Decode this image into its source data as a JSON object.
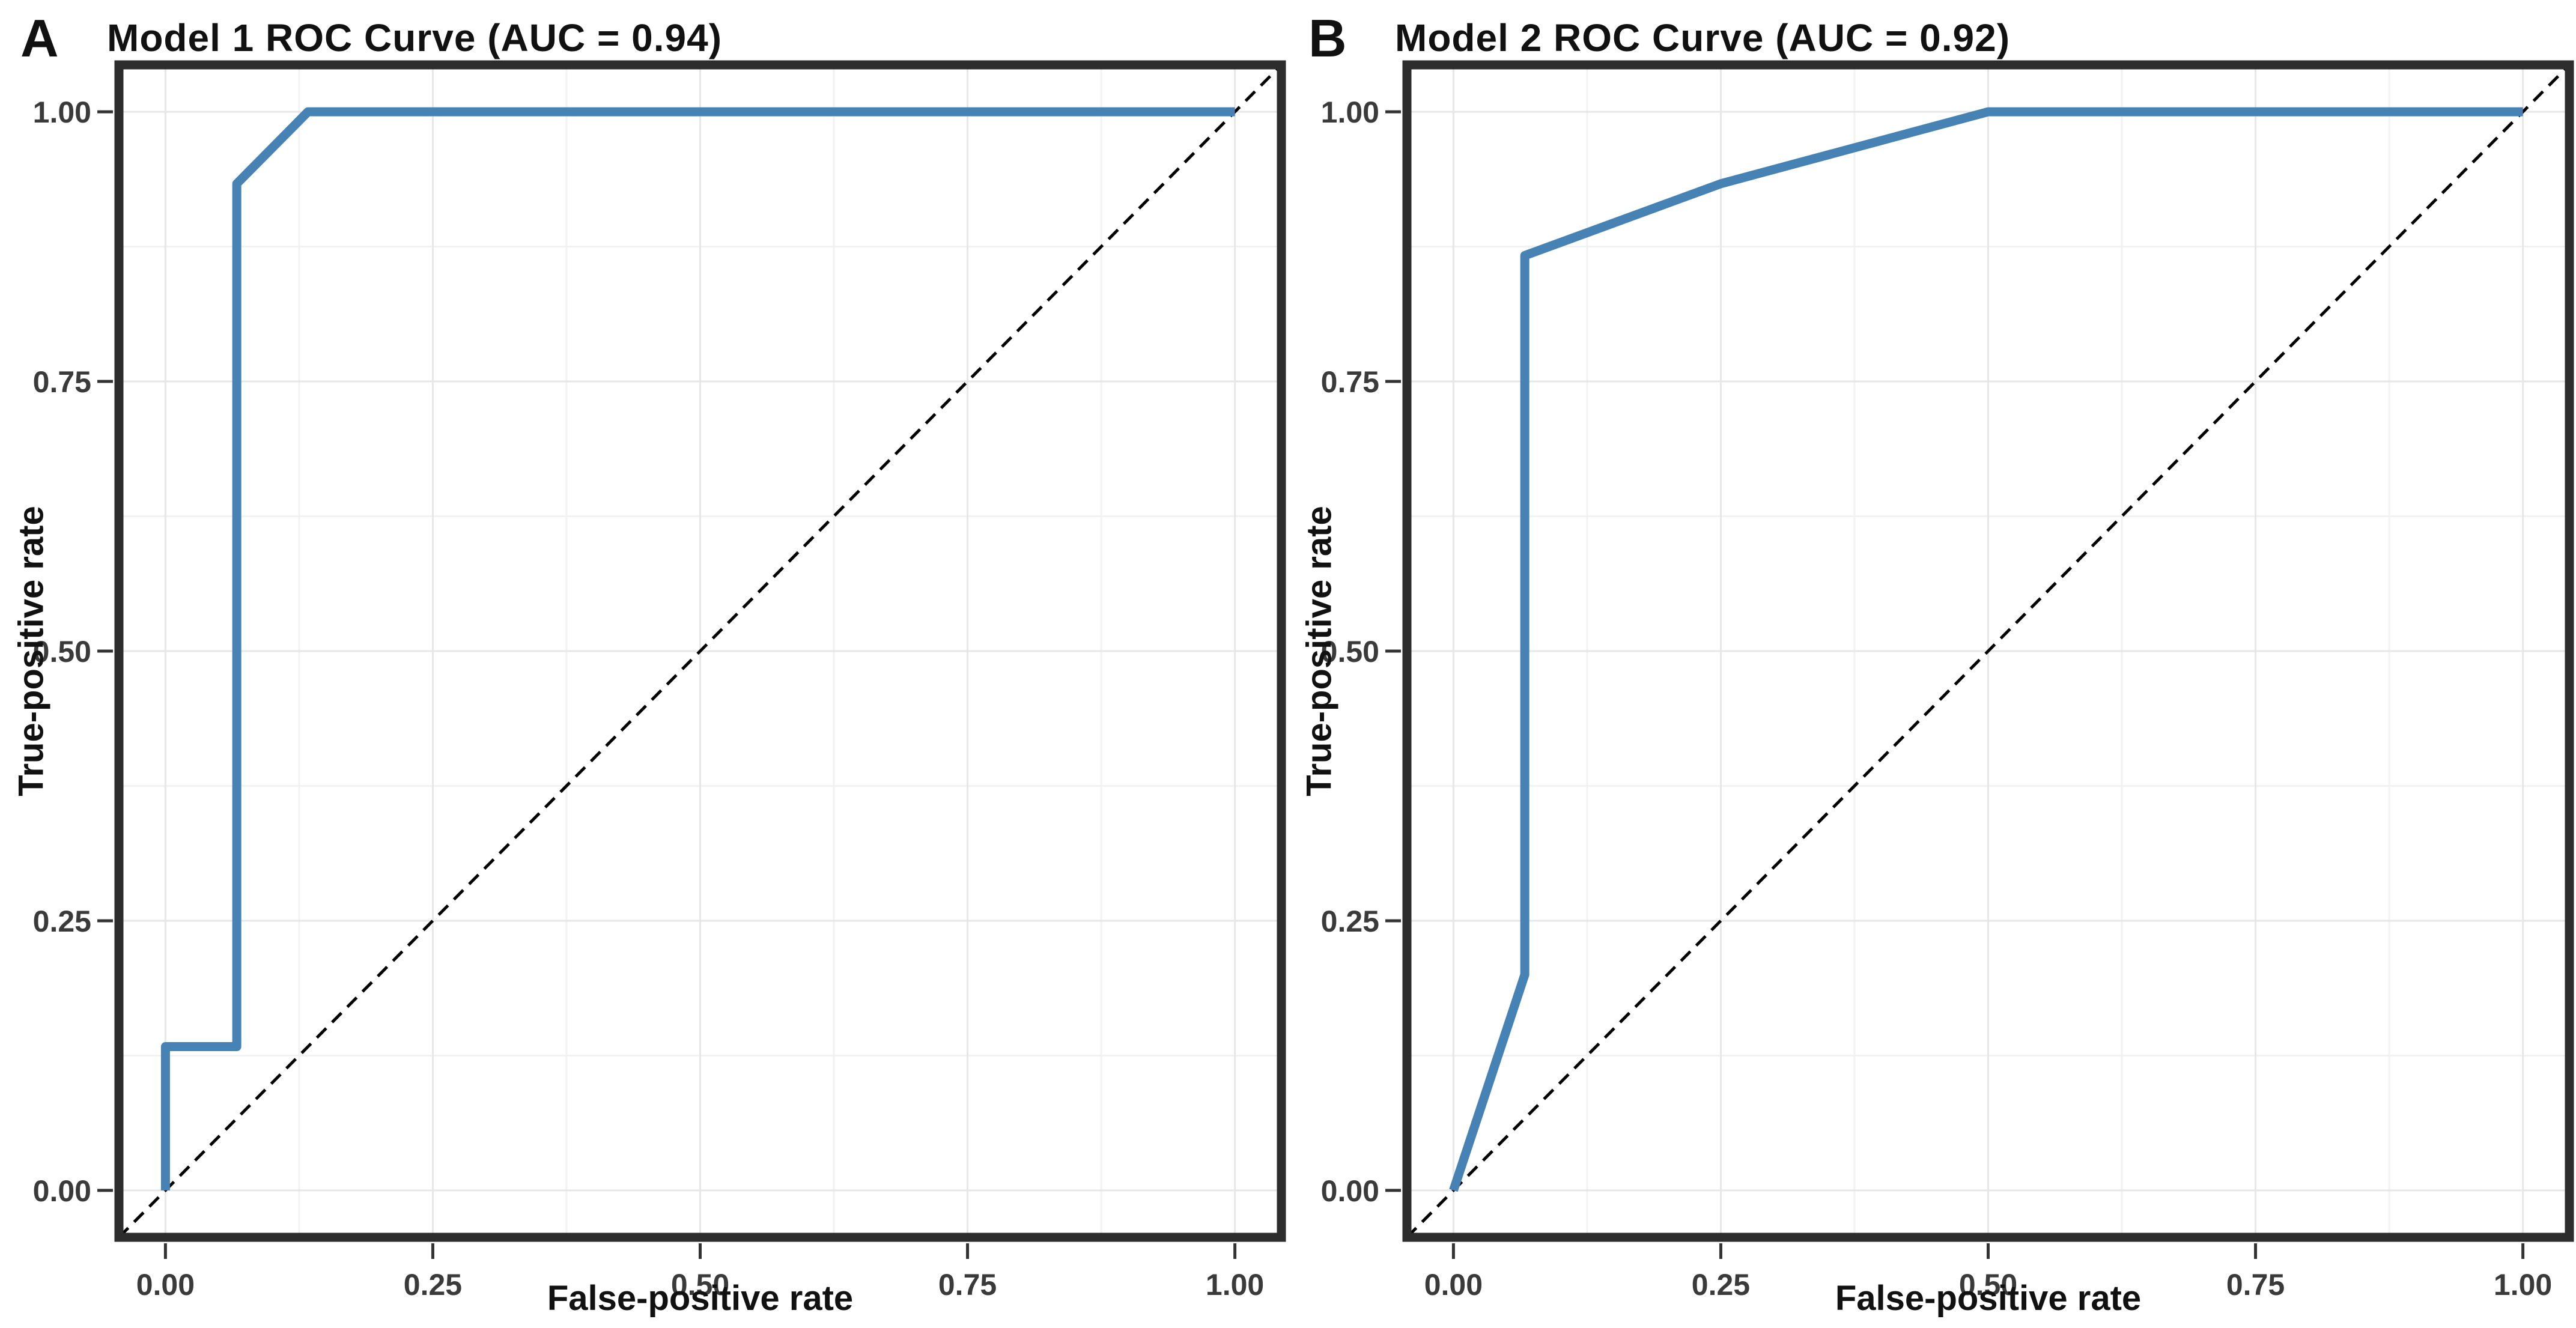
{
  "figure": {
    "description": "Two-panel ROC curve figure",
    "panels": [
      "A",
      "B"
    ]
  },
  "theme": {
    "curve_color": "#4682B4",
    "reference_color": "#000000",
    "border_color": "#2d2d2d",
    "grid_major_color": "#e7e7e7",
    "grid_minor_color": "#f2f2f2",
    "tick_color": "#333333",
    "tick_label_color": "#3a3a3a",
    "text_color": "#111111",
    "background": "#ffffff"
  },
  "chart_data": [
    {
      "type": "line",
      "panel_label": "A",
      "title": "Model 1 ROC Curve (AUC = 0.94)",
      "auc": 0.94,
      "xlabel": "False-positive rate",
      "ylabel": "True-positive rate",
      "xlim": [
        0,
        1
      ],
      "ylim": [
        0,
        1
      ],
      "x_tick_values": [
        0,
        0.25,
        0.5,
        0.75,
        1
      ],
      "x_ticks": [
        "0.00",
        "0.25",
        "0.50",
        "0.75",
        "1.00"
      ],
      "y_tick_values": [
        0,
        0.25,
        0.5,
        0.75,
        1
      ],
      "y_ticks": [
        "0.00",
        "0.25",
        "0.50",
        "0.75",
        "1.00"
      ],
      "x_minor": [
        0.125,
        0.375,
        0.625,
        0.875
      ],
      "y_minor": [
        0.125,
        0.375,
        0.625,
        0.875
      ],
      "grid": "major + minor light gray on white, dark panel border",
      "legend": "none",
      "series": [
        {
          "name": "ROC curve",
          "style": "solid",
          "points": [
            [
              0,
              0
            ],
            [
              0,
              0.1333
            ],
            [
              0.0667,
              0.1333
            ],
            [
              0.0667,
              0.9333
            ],
            [
              0.1333,
              1
            ],
            [
              1,
              1
            ]
          ]
        },
        {
          "name": "Chance reference line",
          "style": "dashed",
          "points": [
            [
              0,
              0
            ],
            [
              1,
              1
            ]
          ]
        }
      ]
    },
    {
      "type": "line",
      "panel_label": "B",
      "title": "Model 2 ROC Curve (AUC = 0.92)",
      "auc": 0.92,
      "xlabel": "False-positive rate",
      "ylabel": "True-positive rate",
      "xlim": [
        0,
        1
      ],
      "ylim": [
        0,
        1
      ],
      "x_tick_values": [
        0,
        0.25,
        0.5,
        0.75,
        1
      ],
      "x_ticks": [
        "0.00",
        "0.25",
        "0.50",
        "0.75",
        "1.00"
      ],
      "y_tick_values": [
        0,
        0.25,
        0.5,
        0.75,
        1
      ],
      "y_ticks": [
        "0.00",
        "0.25",
        "0.50",
        "0.75",
        "1.00"
      ],
      "x_minor": [
        0.125,
        0.375,
        0.625,
        0.875
      ],
      "y_minor": [
        0.125,
        0.375,
        0.625,
        0.875
      ],
      "grid": "major + minor light gray on white, dark panel border",
      "legend": "none",
      "series": [
        {
          "name": "ROC curve",
          "style": "solid",
          "points": [
            [
              0,
              0
            ],
            [
              0.0667,
              0.2
            ],
            [
              0.0667,
              0.8667
            ],
            [
              0.25,
              0.9333
            ],
            [
              0.5,
              1
            ],
            [
              1,
              1
            ]
          ]
        },
        {
          "name": "Chance reference line",
          "style": "dashed",
          "points": [
            [
              0,
              0
            ],
            [
              1,
              1
            ]
          ]
        }
      ]
    }
  ]
}
